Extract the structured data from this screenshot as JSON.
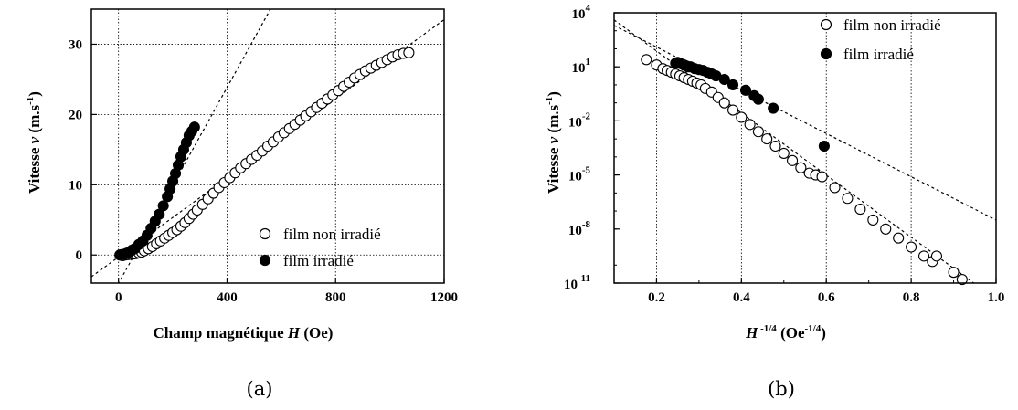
{
  "chart_data": [
    {
      "id": "a",
      "type": "scatter",
      "caption": "(a)",
      "xlabel_pre": "Champ magnétique ",
      "xlabel_var": "H",
      "xlabel_post": " (Oe)",
      "ylabel_pre": "Vitesse ",
      "ylabel_var": "v",
      "ylabel_unit": " (m.s",
      "ylabel_sup": "-1",
      "ylabel_close": ")",
      "xlim": [
        -100,
        1200
      ],
      "ylim": [
        -4,
        35
      ],
      "xticks": [
        0,
        400,
        800,
        1200
      ],
      "yticks": [
        0,
        10,
        20,
        30
      ],
      "grid": true,
      "legend_position": "bottom-right",
      "series": [
        {
          "name": "film non irradié",
          "marker": "open-circle",
          "x": [
            15,
            25,
            35,
            45,
            55,
            65,
            75,
            85,
            95,
            110,
            125,
            140,
            155,
            170,
            185,
            200,
            215,
            230,
            245,
            260,
            275,
            290,
            310,
            330,
            350,
            370,
            390,
            410,
            430,
            450,
            470,
            490,
            510,
            530,
            550,
            570,
            590,
            610,
            630,
            650,
            670,
            690,
            710,
            730,
            750,
            770,
            790,
            810,
            830,
            850,
            870,
            890,
            910,
            930,
            950,
            970,
            990,
            1010,
            1030,
            1050,
            1070
          ],
          "y": [
            -0.1,
            0.0,
            0.05,
            0.1,
            0.15,
            0.2,
            0.3,
            0.4,
            0.6,
            0.9,
            1.2,
            1.6,
            2.0,
            2.4,
            2.8,
            3.2,
            3.6,
            4.1,
            4.6,
            5.2,
            5.8,
            6.4,
            7.2,
            8.0,
            8.8,
            9.6,
            10.3,
            11.0,
            11.7,
            12.4,
            13.0,
            13.6,
            14.2,
            14.8,
            15.5,
            16.1,
            16.8,
            17.4,
            18.0,
            18.6,
            19.2,
            19.8,
            20.4,
            21.0,
            21.6,
            22.2,
            22.8,
            23.4,
            24.0,
            24.6,
            25.2,
            25.7,
            26.2,
            26.6,
            27.0,
            27.4,
            27.8,
            28.2,
            28.5,
            28.7,
            28.8
          ]
        },
        {
          "name": "film irradié",
          "marker": "filled-circle",
          "x": [
            5,
            12,
            20,
            30,
            40,
            50,
            60,
            75,
            90,
            105,
            120,
            135,
            150,
            165,
            180,
            190,
            200,
            210,
            220,
            230,
            240,
            250,
            260,
            270,
            280
          ],
          "y": [
            0.0,
            0.05,
            0.1,
            0.25,
            0.4,
            0.7,
            0.9,
            1.5,
            2.0,
            2.8,
            3.8,
            4.8,
            5.8,
            7.0,
            8.3,
            9.4,
            10.5,
            11.6,
            12.8,
            14.0,
            15.0,
            16.0,
            17.0,
            17.6,
            18.2
          ]
        }
      ],
      "fit_lines": [
        {
          "x": [
            -100,
            1200
          ],
          "y": [
            -3.1,
            33.5
          ]
        },
        {
          "x": [
            -100,
            560
          ],
          "y": [
            -11.0,
            35.0
          ]
        }
      ]
    },
    {
      "id": "b",
      "type": "scatter",
      "caption": "(b)",
      "xlabel_var": "H",
      "xlabel_sup": " -1/4",
      "xlabel_unit": " (Oe",
      "xlabel_unit_sup": "-1/4",
      "xlabel_close": ")",
      "ylabel_pre": "Vitesse ",
      "ylabel_var": "v",
      "ylabel_unit": " (m.s",
      "ylabel_sup": "-1",
      "ylabel_close": ")",
      "xlim": [
        0.1,
        1.0
      ],
      "ylim_log10": [
        -11,
        4
      ],
      "yscale": "log",
      "xticks": [
        "0.2",
        "0.4",
        "0.6",
        "0.8",
        "1.0"
      ],
      "ytick_base": "10",
      "ytick_exponents": [
        "4",
        "1",
        "-2",
        "-5",
        "-8",
        "-11"
      ],
      "grid": true,
      "legend_position": "top-right",
      "series": [
        {
          "name": "film non irradié",
          "marker": "open-circle",
          "x": [
            0.176,
            0.2,
            0.215,
            0.225,
            0.235,
            0.245,
            0.255,
            0.265,
            0.275,
            0.285,
            0.295,
            0.305,
            0.315,
            0.33,
            0.345,
            0.36,
            0.38,
            0.4,
            0.42,
            0.44,
            0.46,
            0.48,
            0.5,
            0.52,
            0.54,
            0.56,
            0.575,
            0.59,
            0.62,
            0.65,
            0.68,
            0.71,
            0.74,
            0.77,
            0.8,
            0.83,
            0.85,
            0.86,
            0.9,
            0.92
          ],
          "y_log10": [
            1.4,
            1.1,
            0.9,
            0.8,
            0.7,
            0.6,
            0.5,
            0.4,
            0.3,
            0.2,
            0.1,
            0.0,
            -0.2,
            -0.4,
            -0.7,
            -1.0,
            -1.4,
            -1.8,
            -2.2,
            -2.6,
            -3.0,
            -3.4,
            -3.8,
            -4.2,
            -4.6,
            -4.9,
            -5.0,
            -5.1,
            -5.7,
            -6.3,
            -6.9,
            -7.5,
            -8.0,
            -8.5,
            -9.0,
            -9.5,
            -9.8,
            -9.5,
            -10.4,
            -10.8
          ]
        },
        {
          "name": "film irradié",
          "marker": "filled-circle",
          "x": [
            0.245,
            0.25,
            0.255,
            0.26,
            0.265,
            0.27,
            0.275,
            0.28,
            0.29,
            0.3,
            0.31,
            0.32,
            0.33,
            0.34,
            0.36,
            0.38,
            0.41,
            0.43,
            0.44,
            0.475,
            0.595
          ],
          "y_log10": [
            1.2,
            1.25,
            1.2,
            1.15,
            1.1,
            1.05,
            1.0,
            1.0,
            0.9,
            0.85,
            0.8,
            0.7,
            0.6,
            0.5,
            0.3,
            0.0,
            -0.3,
            -0.6,
            -0.8,
            -1.3,
            -3.4
          ]
        }
      ],
      "fit_lines": [
        {
          "x": [
            0.1,
            1.0
          ],
          "y_log10": [
            3.6,
            -11.9
          ]
        },
        {
          "x": [
            0.1,
            1.0
          ],
          "y_log10": [
            3.3,
            -7.5
          ]
        }
      ]
    }
  ]
}
